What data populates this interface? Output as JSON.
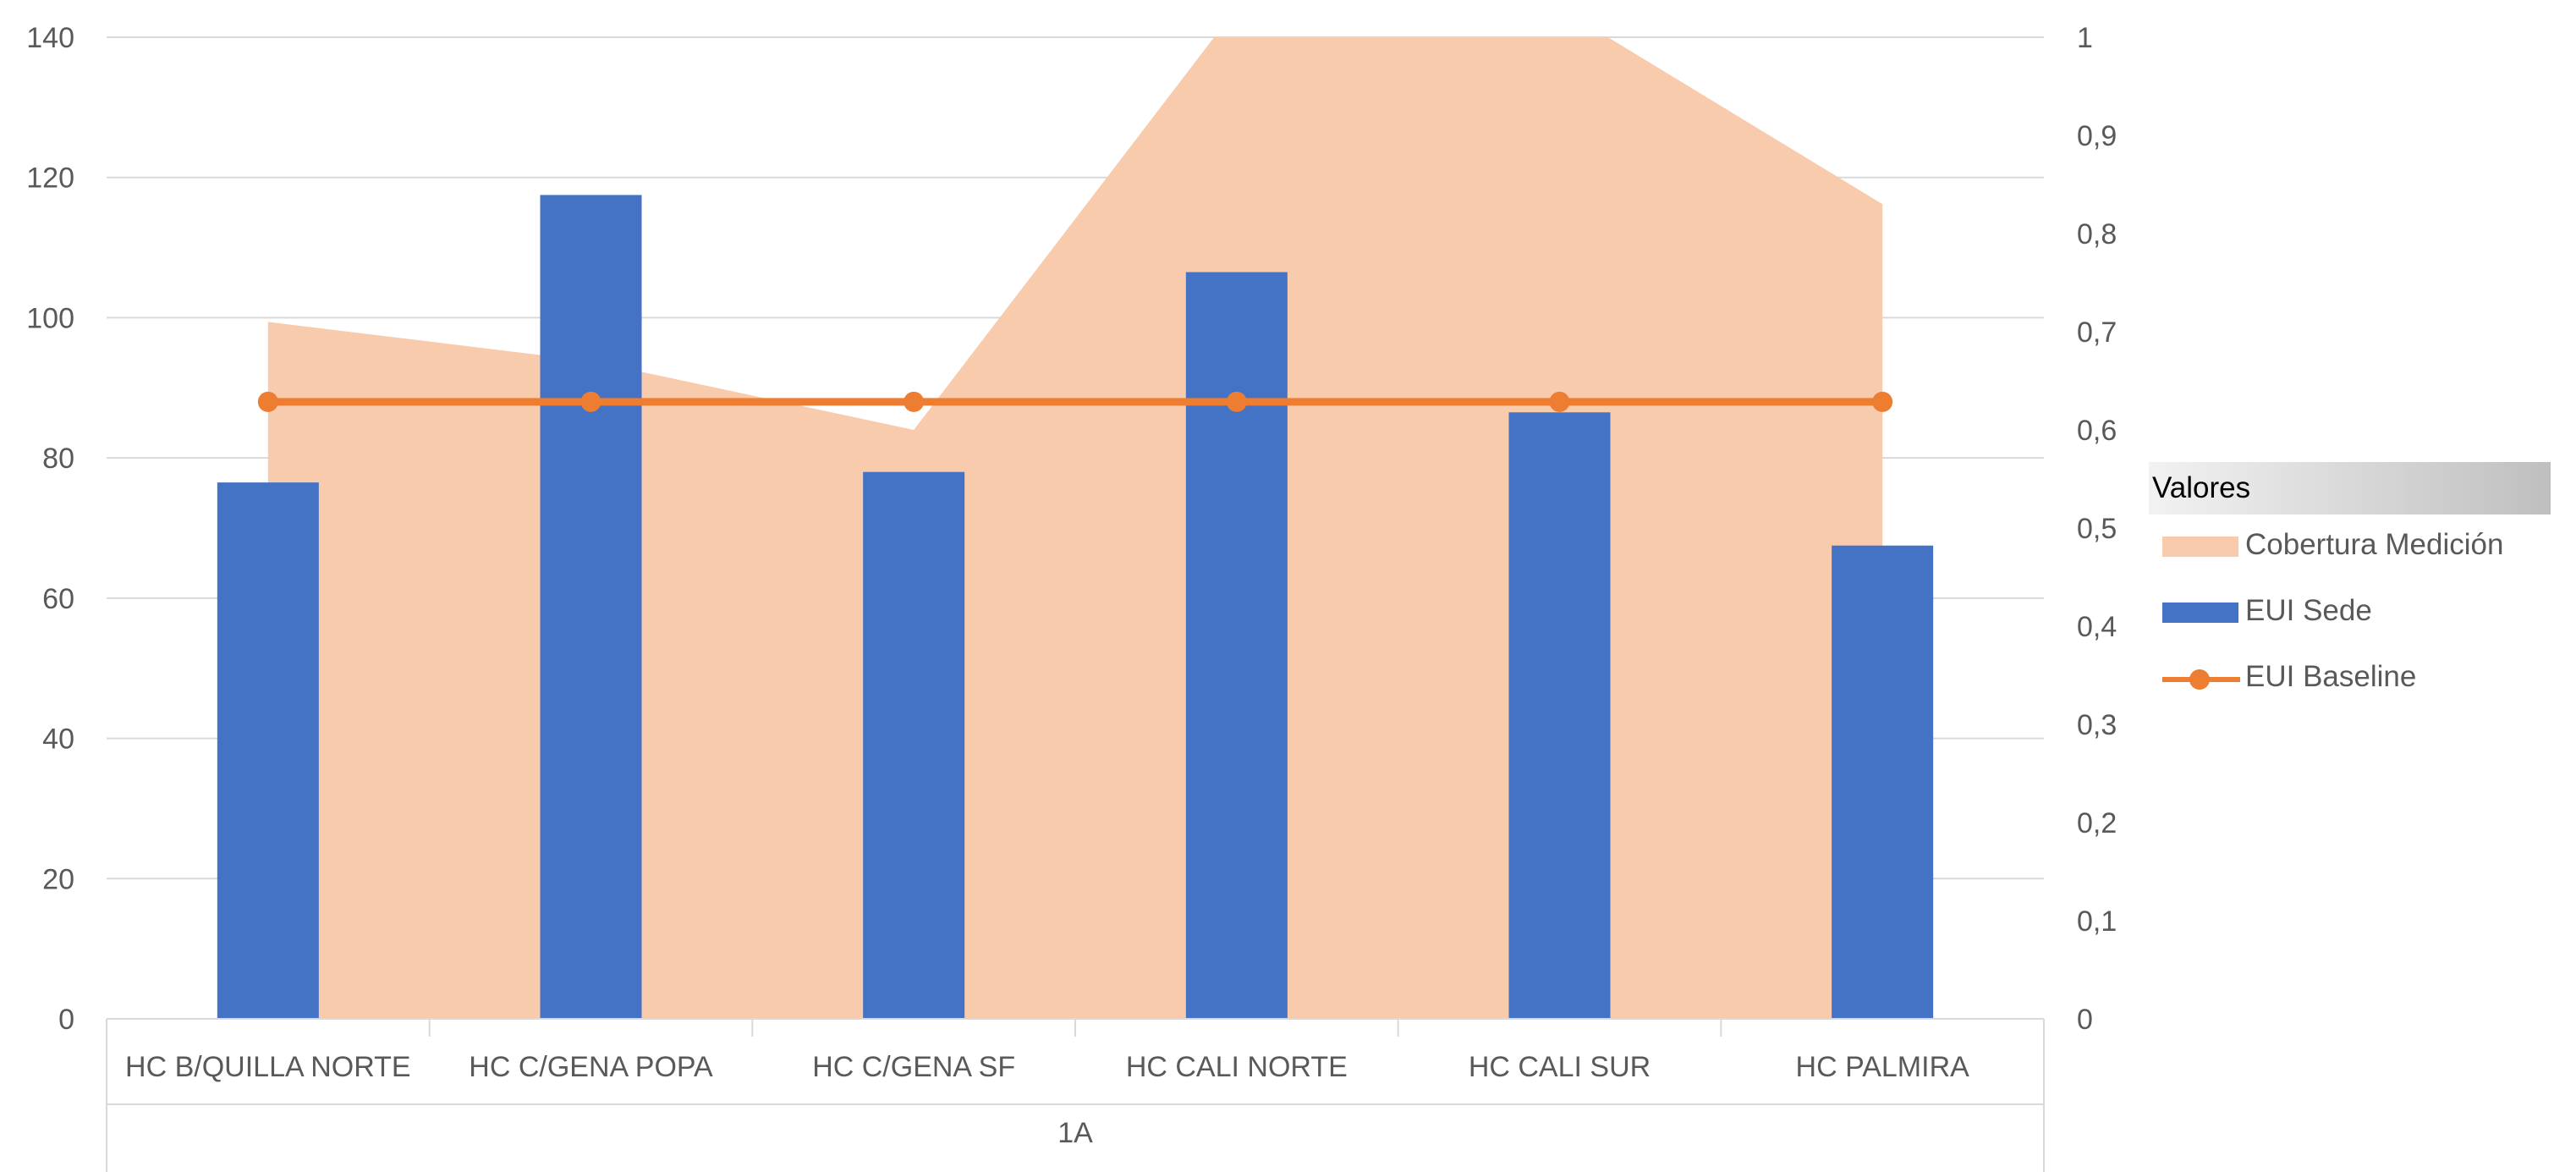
{
  "chart_data": {
    "type": "bar",
    "categories": [
      "HC B/QUILLA NORTE",
      "HC C/GENA POPA",
      "HC C/GENA SF",
      "HC CALI NORTE",
      "HC CALI SUR",
      "HC PALMIRA"
    ],
    "group_label": "1A",
    "left_axis": {
      "min": 0,
      "max": 140,
      "step": 20,
      "ticks": [
        "0",
        "20",
        "40",
        "60",
        "80",
        "100",
        "120",
        "140"
      ]
    },
    "right_axis": {
      "min": 0,
      "max": 1,
      "step": 0.1,
      "ticks": [
        "0",
        "0,1",
        "0,2",
        "0,3",
        "0,4",
        "0,5",
        "0,6",
        "0,7",
        "0,8",
        "0,9",
        "1"
      ]
    },
    "grid": true,
    "legend_position": "right",
    "series": [
      {
        "name": "Cobertura Medición",
        "type": "area",
        "axis": "right",
        "color": "#f8cbad",
        "values": [
          0.71,
          0.67,
          0.6,
          1.03,
          1.03,
          0.83
        ]
      },
      {
        "name": "EUI Sede",
        "type": "bar",
        "axis": "left",
        "color": "#4472c4",
        "values": [
          76.5,
          117.5,
          78,
          106.5,
          86.5,
          67.5
        ]
      },
      {
        "name": "EUI Baseline",
        "type": "line",
        "axis": "left",
        "color": "#ed7d31",
        "values": [
          88,
          88,
          88,
          88,
          88,
          88
        ]
      }
    ]
  },
  "legend": {
    "title": "Valores",
    "items": [
      {
        "label": "Cobertura Medición",
        "kind": "area",
        "color": "#f8cbad"
      },
      {
        "label": "EUI Sede",
        "kind": "bar",
        "color": "#4472c4"
      },
      {
        "label": "EUI Baseline",
        "kind": "line",
        "color": "#ed7d31"
      }
    ]
  }
}
